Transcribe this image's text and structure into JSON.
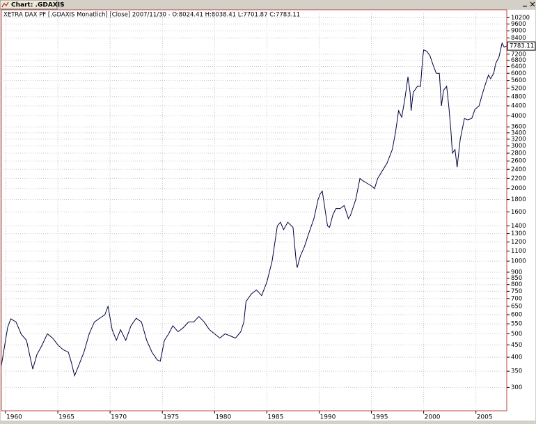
{
  "window": {
    "tab_title": "Chart: .GDAXIS"
  },
  "chart_data": {
    "type": "line",
    "title": "XETRA DAX PF [.GDAXIS  Monatlich] [Close] 2007/11/30 - O:8024.41 H:8038.41 L:7701.87 C:7783.11",
    "log_scale": true,
    "grid": true,
    "color": "#000040",
    "x": [
      1959.6,
      1960.2,
      1960.5,
      1961,
      1961.5,
      1962,
      1962.6,
      1963,
      1963.5,
      1964,
      1964.5,
      1965,
      1965.5,
      1966,
      1966.3,
      1966.6,
      1967,
      1967.5,
      1968,
      1968.5,
      1969,
      1969.5,
      1969.8,
      1970.2,
      1970.6,
      1971,
      1971.5,
      1972,
      1972.5,
      1973,
      1973.5,
      1974,
      1974.5,
      1974.8,
      1975.2,
      1975.6,
      1976,
      1976.5,
      1977,
      1977.5,
      1978,
      1978.5,
      1979,
      1979.5,
      1980,
      1980.5,
      1981,
      1981.5,
      1982,
      1982.5,
      1982.8,
      1983,
      1983.5,
      1984,
      1984.5,
      1985,
      1985.5,
      1986,
      1986.3,
      1986.6,
      1987,
      1987.5,
      1987.8,
      1987.9,
      1988.2,
      1988.6,
      1989,
      1989.5,
      1989.9,
      1990.1,
      1990.3,
      1990.6,
      1990.8,
      1991,
      1991.3,
      1991.6,
      1992,
      1992.4,
      1992.8,
      1993,
      1993.5,
      1993.9,
      1994.2,
      1994.6,
      1995,
      1995.3,
      1995.6,
      1996,
      1996.5,
      1997,
      1997.3,
      1997.6,
      1997.9,
      1998.2,
      1998.5,
      1998.7,
      1998.8,
      1999,
      1999.4,
      1999.7,
      1999.9,
      2000,
      2000.3,
      2000.6,
      2000.9,
      2001.2,
      2001.5,
      2001.7,
      2001.9,
      2002.2,
      2002.4,
      2002.6,
      2002.75,
      2003,
      2003.2,
      2003.5,
      2003.9,
      2004.2,
      2004.6,
      2004.9,
      2005.3,
      2005.6,
      2005.9,
      2006.2,
      2006.4,
      2006.7,
      2006.9,
      2007.2,
      2007.5,
      2007.7,
      2007.92
    ],
    "values": [
      370,
      532,
      577,
      560,
      498,
      470,
      357,
      410,
      450,
      500,
      480,
      450,
      430,
      420,
      380,
      335,
      370,
      420,
      500,
      560,
      580,
      600,
      650,
      520,
      470,
      520,
      470,
      540,
      580,
      560,
      470,
      420,
      390,
      385,
      470,
      500,
      540,
      510,
      530,
      560,
      560,
      590,
      560,
      520,
      500,
      480,
      500,
      490,
      480,
      510,
      560,
      680,
      730,
      760,
      720,
      820,
      1000,
      1400,
      1450,
      1350,
      1450,
      1380,
      1000,
      940,
      1050,
      1150,
      1300,
      1500,
      1800,
      1900,
      1950,
      1600,
      1400,
      1380,
      1550,
      1650,
      1650,
      1700,
      1500,
      1550,
      1800,
      2200,
      2150,
      2100,
      2050,
      2000,
      2200,
      2350,
      2550,
      2900,
      3400,
      4200,
      3950,
      4700,
      5800,
      5000,
      4200,
      5000,
      5300,
      5300,
      6900,
      7500,
      7400,
      7100,
      6500,
      6000,
      6000,
      4400,
      5100,
      5300,
      4400,
      3500,
      2800,
      2900,
      2450,
      3200,
      3900,
      3850,
      3900,
      4250,
      4400,
      4900,
      5400,
      5900,
      5700,
      6000,
      6600,
      7000,
      8000,
      7700,
      7783.11
    ],
    "last_close": 7783.11,
    "xlim": [
      1959.6,
      2007.95
    ],
    "ylim": [
      240,
      11000
    ],
    "xticks": [
      1960,
      1965,
      1970,
      1975,
      1980,
      1985,
      1990,
      1995,
      2000,
      2005
    ],
    "yticks": [
      300,
      350,
      400,
      450,
      500,
      550,
      600,
      650,
      700,
      750,
      800,
      850,
      900,
      1000,
      1100,
      1200,
      1300,
      1400,
      1600,
      1800,
      2000,
      2200,
      2400,
      2600,
      2800,
      3000,
      3200,
      3400,
      3600,
      4000,
      4400,
      4800,
      5200,
      5600,
      6000,
      6400,
      6800,
      7200,
      8400,
      9000,
      9600,
      10200
    ]
  }
}
